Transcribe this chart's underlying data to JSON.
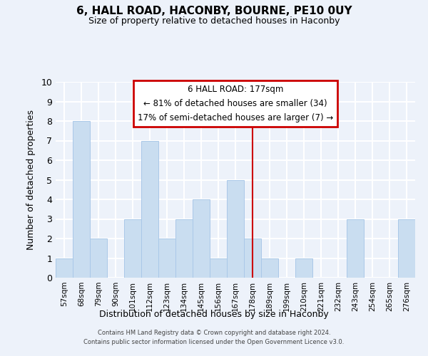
{
  "title": "6, HALL ROAD, HACONBY, BOURNE, PE10 0UY",
  "subtitle": "Size of property relative to detached houses in Haconby",
  "xlabel": "Distribution of detached houses by size in Haconby",
  "ylabel": "Number of detached properties",
  "bin_labels": [
    "57sqm",
    "68sqm",
    "79sqm",
    "90sqm",
    "101sqm",
    "112sqm",
    "123sqm",
    "134sqm",
    "145sqm",
    "156sqm",
    "167sqm",
    "178sqm",
    "189sqm",
    "199sqm",
    "210sqm",
    "221sqm",
    "232sqm",
    "243sqm",
    "254sqm",
    "265sqm",
    "276sqm"
  ],
  "bar_heights": [
    1,
    8,
    2,
    0,
    3,
    7,
    2,
    3,
    4,
    1,
    5,
    2,
    1,
    0,
    1,
    0,
    0,
    3,
    0,
    0,
    3
  ],
  "bar_color": "#c9ddf0",
  "bar_edge_color": "#aac8e8",
  "vline_x_index": 11,
  "vline_color": "#cc0000",
  "ylim": [
    0,
    10
  ],
  "yticks": [
    0,
    1,
    2,
    3,
    4,
    5,
    6,
    7,
    8,
    9,
    10
  ],
  "annotation_title": "6 HALL ROAD: 177sqm",
  "annotation_line1": "← 81% of detached houses are smaller (34)",
  "annotation_line2": "17% of semi-detached houses are larger (7) →",
  "annotation_box_facecolor": "#ffffff",
  "annotation_box_edgecolor": "#cc0000",
  "footer_line1": "Contains HM Land Registry data © Crown copyright and database right 2024.",
  "footer_line2": "Contains public sector information licensed under the Open Government Licence v3.0.",
  "background_color": "#edf2fa",
  "grid_color": "#ffffff"
}
